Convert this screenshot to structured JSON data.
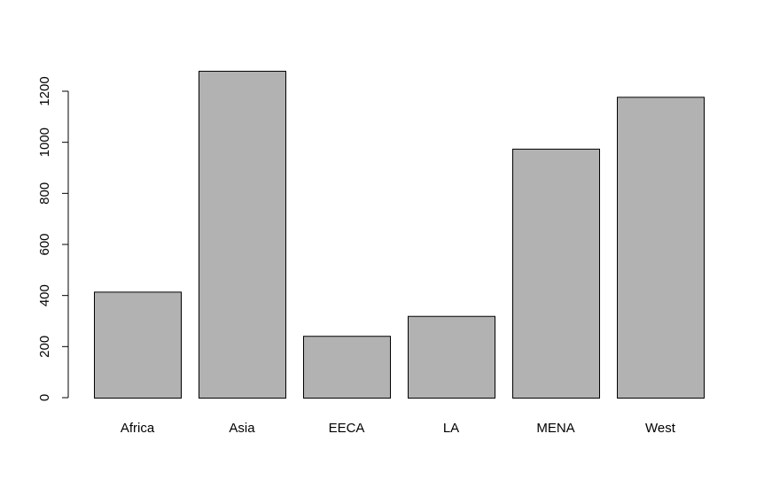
{
  "chart_data": {
    "type": "bar",
    "categories": [
      "Africa",
      "Asia",
      "EECA",
      "LA",
      "MENA",
      "West"
    ],
    "values": [
      415,
      1280,
      242,
      320,
      975,
      1178
    ],
    "title": "",
    "xlabel": "",
    "ylabel": "",
    "ylim": [
      0,
      1200
    ],
    "yticks": [
      0,
      200,
      400,
      600,
      800,
      1000,
      1200
    ],
    "grid": false,
    "legend": "none",
    "bar_color": "#b2b2b2",
    "bar_outline": "#000000"
  }
}
